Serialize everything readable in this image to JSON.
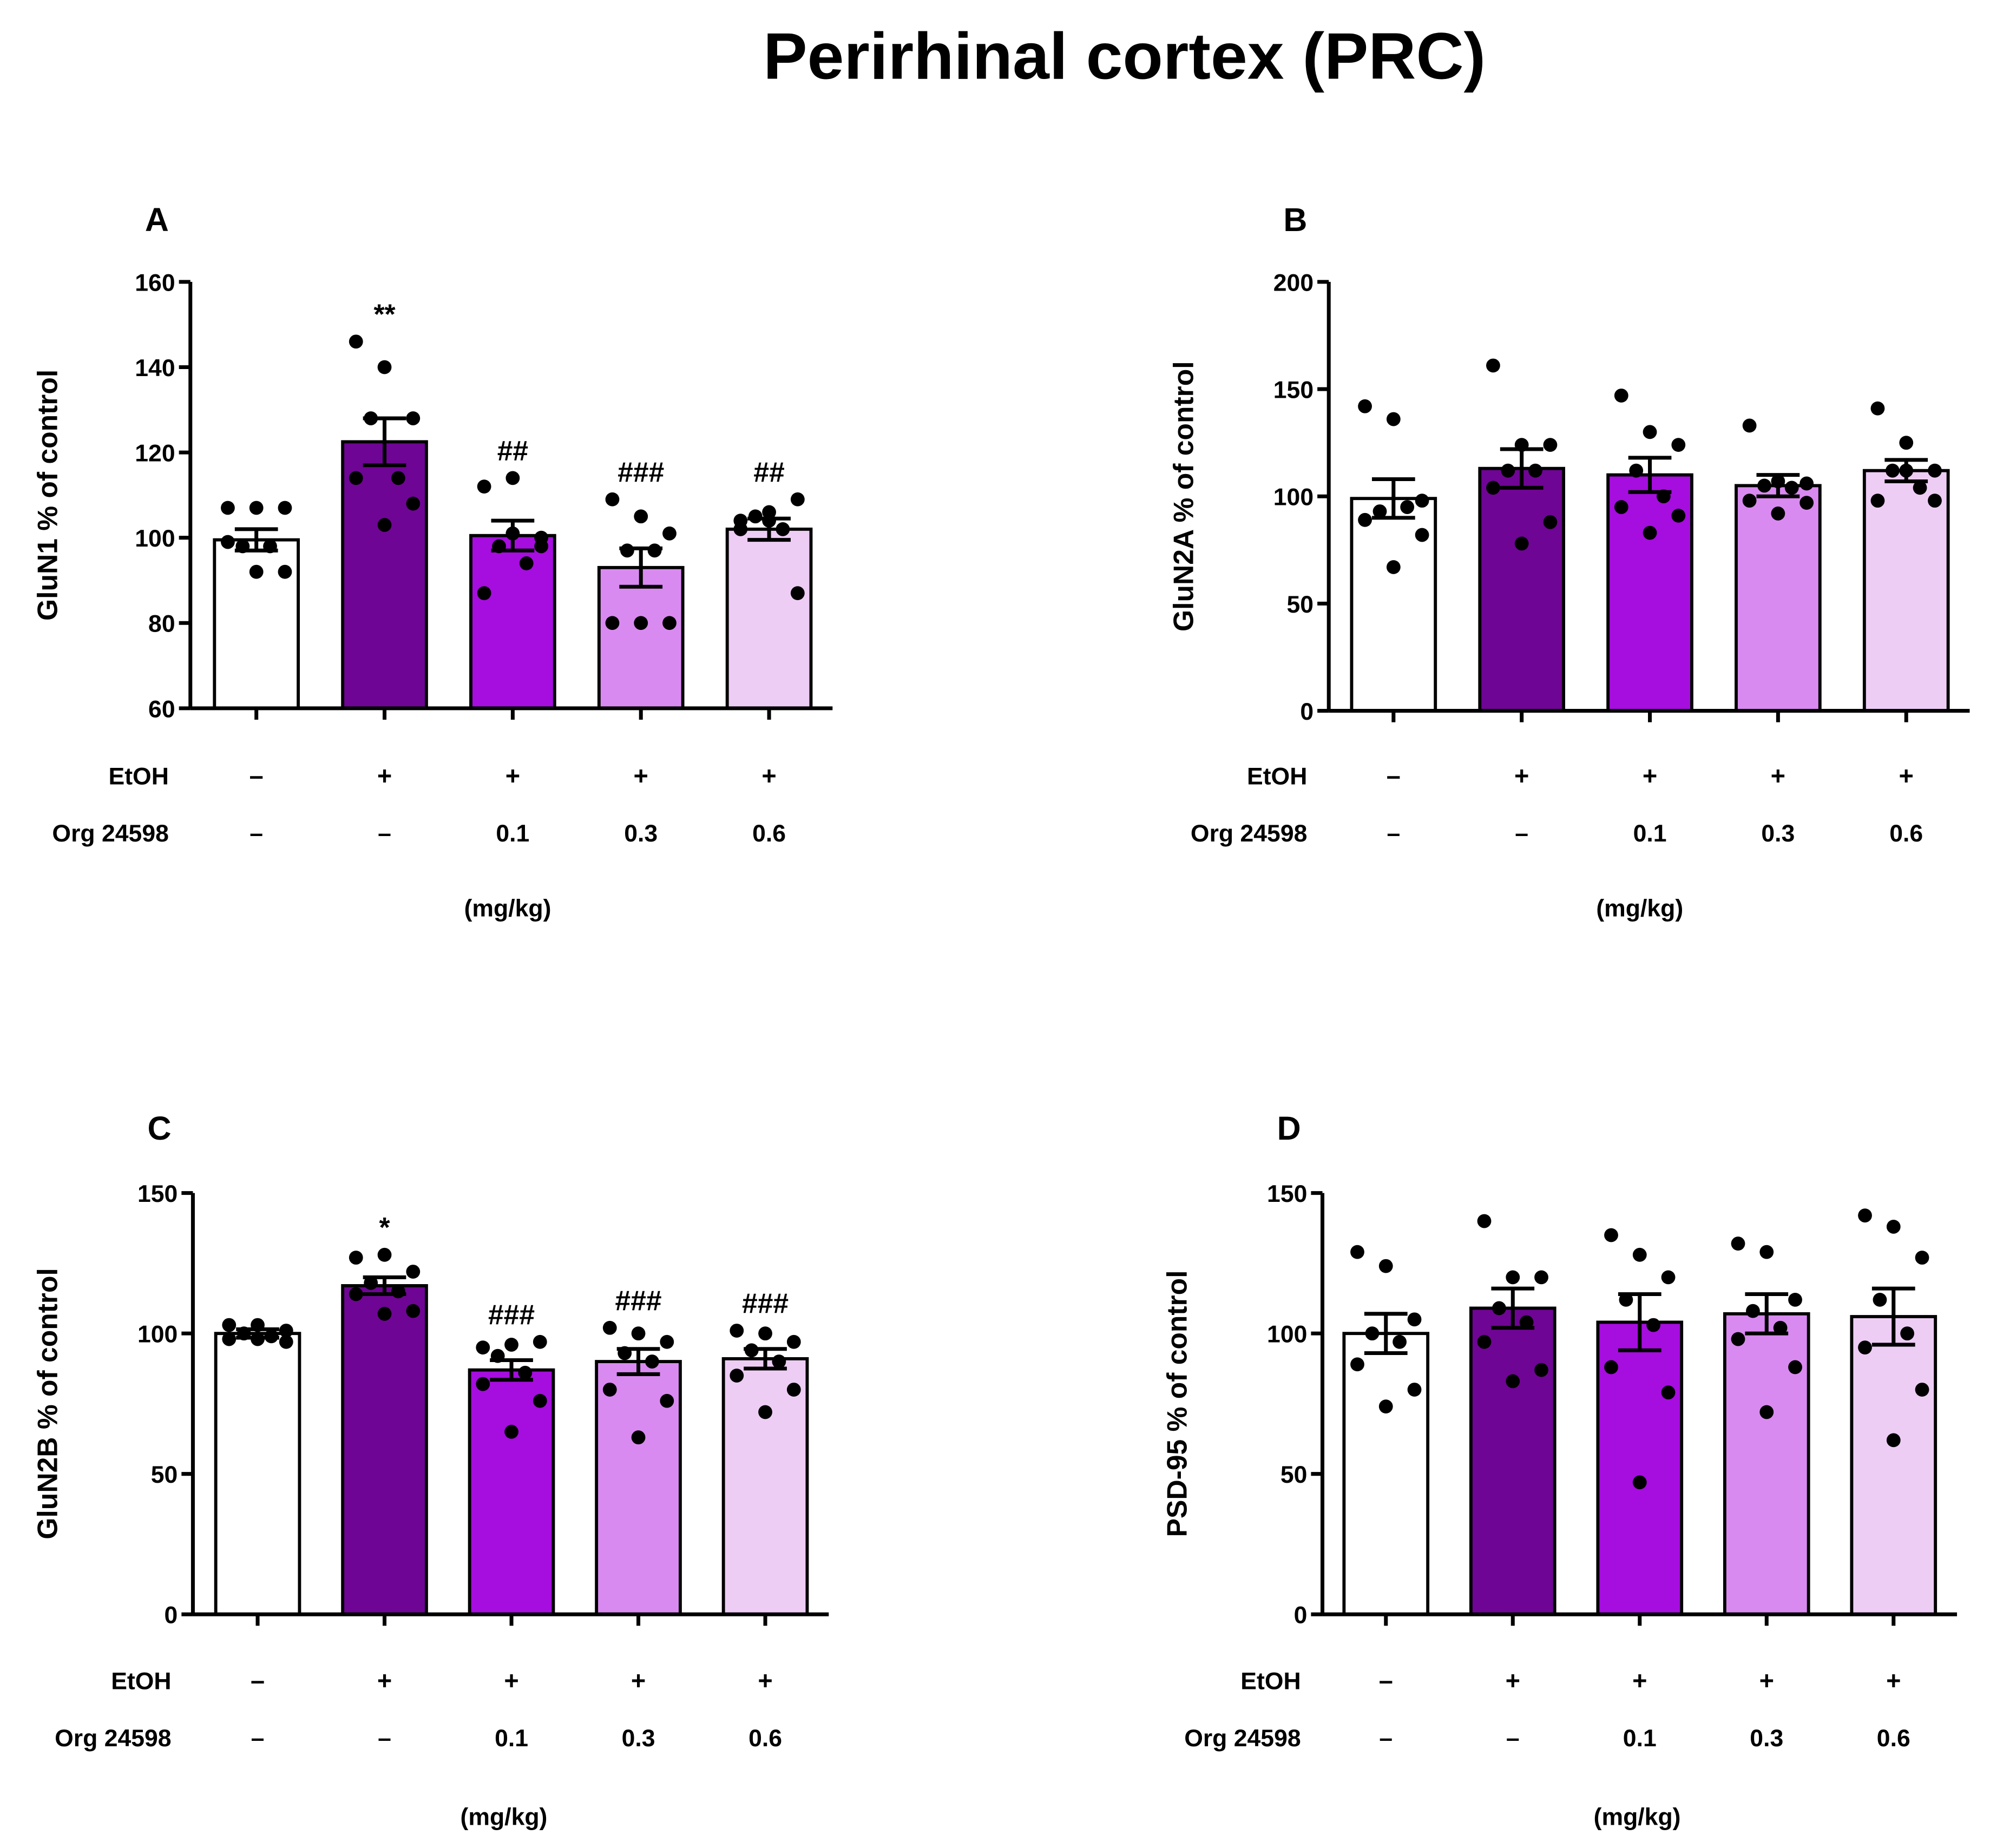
{
  "title": "Perirhinal cortex (PRC)",
  "row_labels": {
    "etoh": "EtOH",
    "org": "Org 24598",
    "unit": "(mg/kg)"
  },
  "colors": [
    "#ffffff",
    "#6f0594",
    "#a60ddf",
    "#d98af0",
    "#eecdf5"
  ],
  "chart_data": [
    {
      "type": "bar",
      "panel": "A",
      "ylabel": "GluN1 % of control",
      "ylim": [
        60,
        160
      ],
      "yticks": [
        60,
        80,
        100,
        120,
        140,
        160
      ],
      "etoh": [
        "–",
        "+",
        "+",
        "+",
        "+"
      ],
      "org": [
        "–",
        "–",
        "0.1",
        "0.3",
        "0.6"
      ],
      "means": [
        99.5,
        122.5,
        100.5,
        93,
        102
      ],
      "sem": [
        2.5,
        5.5,
        3.5,
        4.5,
        2.5
      ],
      "sig": [
        "",
        "**",
        "##",
        "###",
        "##"
      ],
      "points": [
        [
          107,
          107,
          107,
          98,
          98,
          99,
          92,
          92
        ],
        [
          146,
          140,
          128,
          128,
          114,
          114,
          108,
          103
        ],
        [
          112,
          114,
          98,
          98,
          94,
          87,
          100,
          101
        ],
        [
          109,
          105,
          101,
          97,
          97,
          80,
          80,
          80
        ],
        [
          104,
          106,
          109,
          105,
          102,
          102,
          87,
          104
        ]
      ]
    },
    {
      "type": "bar",
      "panel": "B",
      "ylabel": "GluN2A % of control",
      "ylim": [
        0,
        200
      ],
      "yticks": [
        0,
        50,
        100,
        150,
        200
      ],
      "etoh": [
        "–",
        "+",
        "+",
        "+",
        "+"
      ],
      "org": [
        "–",
        "–",
        "0.1",
        "0.3",
        "0.6"
      ],
      "means": [
        99,
        113,
        110,
        105,
        112
      ],
      "sem": [
        9,
        9,
        8,
        5,
        5
      ],
      "sig": [
        "",
        "",
        "",
        "",
        ""
      ],
      "points": [
        [
          142,
          136,
          98,
          93,
          95,
          89,
          82,
          67
        ],
        [
          161,
          124,
          124,
          112,
          112,
          104,
          88,
          78
        ],
        [
          147,
          130,
          124,
          112,
          100,
          95,
          91,
          83
        ],
        [
          133,
          107,
          106,
          105,
          104,
          98,
          97,
          92
        ],
        [
          141,
          125,
          112,
          112,
          104,
          98,
          98,
          112
        ]
      ]
    },
    {
      "type": "bar",
      "panel": "C",
      "ylabel": "GluN2B % of control",
      "ylim": [
        0,
        150
      ],
      "yticks": [
        0,
        50,
        100,
        150
      ],
      "etoh": [
        "–",
        "+",
        "+",
        "+",
        "+"
      ],
      "org": [
        "–",
        "–",
        "0.1",
        "0.3",
        "0.6"
      ],
      "means": [
        100,
        117,
        87,
        90,
        91
      ],
      "sem": [
        1.5,
        3,
        3.5,
        4.5,
        3.5
      ],
      "sig": [
        "",
        "*",
        "###",
        "###",
        "###"
      ],
      "points": [
        [
          103,
          103,
          101,
          100,
          99,
          98,
          97,
          98
        ],
        [
          127,
          128,
          122,
          118,
          115,
          114,
          108,
          107
        ],
        [
          95,
          96,
          97,
          92,
          86,
          82,
          76,
          65
        ],
        [
          102,
          100,
          97,
          93,
          90,
          80,
          76,
          63
        ],
        [
          101,
          100,
          97,
          94,
          90,
          85,
          80,
          72
        ]
      ]
    },
    {
      "type": "bar",
      "panel": "D",
      "ylabel": "PSD-95 % of control",
      "ylim": [
        0,
        150
      ],
      "yticks": [
        0,
        50,
        100,
        150
      ],
      "etoh": [
        "–",
        "+",
        "+",
        "+",
        "+"
      ],
      "org": [
        "–",
        "–",
        "0.1",
        "0.3",
        "0.6"
      ],
      "means": [
        100,
        109,
        104,
        107,
        106
      ],
      "sem": [
        7,
        7,
        10,
        7,
        10
      ],
      "sig": [
        "",
        "",
        "",
        "",
        ""
      ],
      "points": [
        [
          129,
          124,
          105,
          100,
          97,
          89,
          80,
          74
        ],
        [
          140,
          120,
          120,
          109,
          104,
          97,
          87,
          83
        ],
        [
          135,
          128,
          120,
          112,
          103,
          88,
          79,
          47
        ],
        [
          132,
          129,
          112,
          108,
          102,
          98,
          88,
          72
        ],
        [
          142,
          138,
          127,
          112,
          100,
          95,
          80,
          62
        ]
      ]
    }
  ]
}
